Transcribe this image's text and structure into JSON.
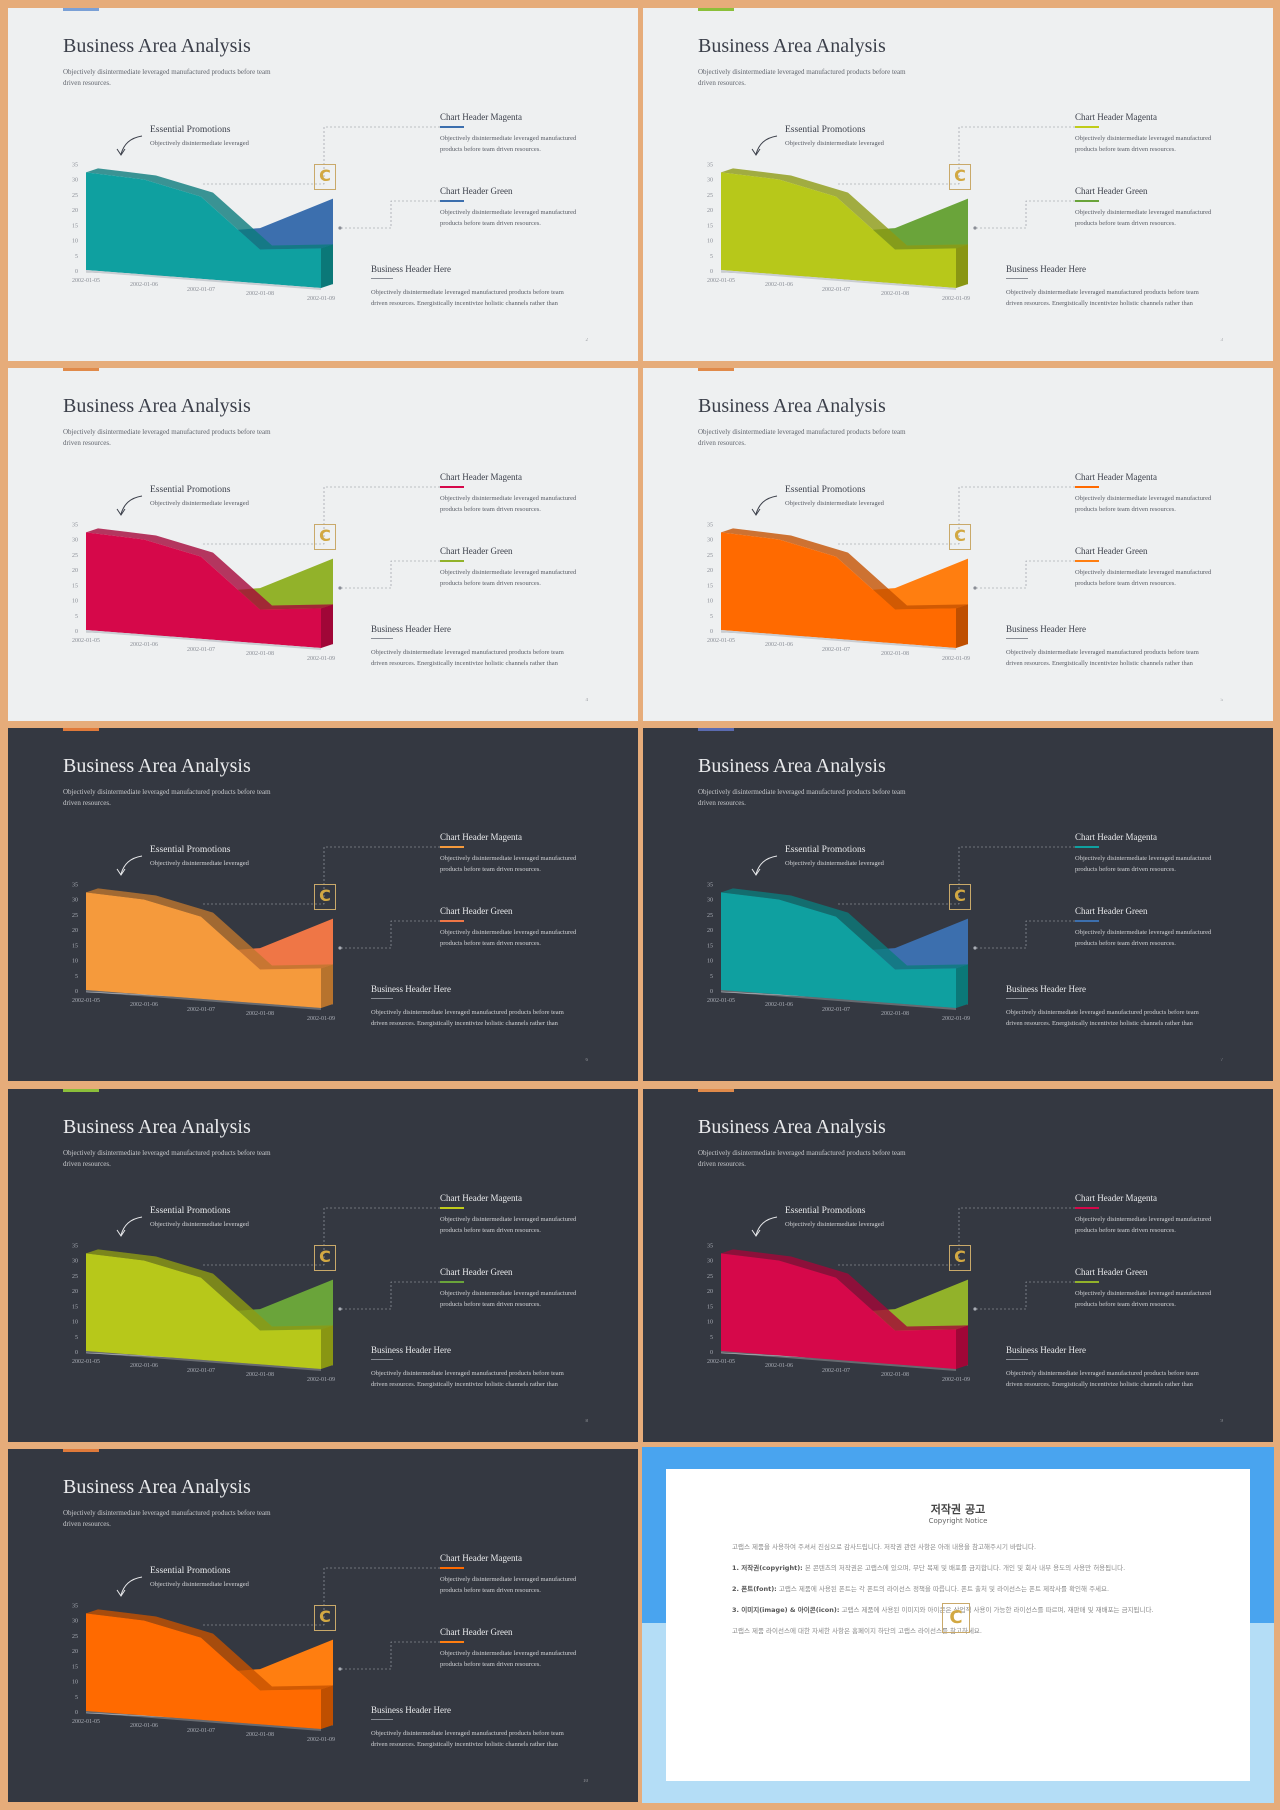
{
  "slide_text": {
    "title": "Business Area Analysis",
    "subtitle": "Objectively disintermediate leveraged manufactured products before team driven resources.",
    "essential_title": "Essential Promotions",
    "essential_text": "Objectively disintermediate leveraged",
    "chart_header_1": "Chart Header Magenta",
    "chart_header_1_text": "Objectively disintermediate leveraged manufactured products before team driven resources.",
    "chart_header_2": "Chart Header Green",
    "chart_header_2_text": "Objectively disintermediate leveraged manufactured products before team driven resources.",
    "business_header": "Business Header Here",
    "business_text": "Objectively disintermediate leveraged manufactured products before team driven resources. Energistically incentivize holistic channels rather than",
    "logo_letter": "C"
  },
  "chart_data": {
    "type": "area",
    "x": [
      "2002-01-05",
      "2002-01-06",
      "2002-01-07",
      "2002-01-08",
      "2002-01-09"
    ],
    "ylim": [
      0,
      35
    ],
    "yticks": [
      0,
      5,
      10,
      15,
      20,
      25,
      30,
      35
    ],
    "series": [
      {
        "values": [
          32,
          31,
          27,
          11,
          13
        ]
      },
      {
        "values": [
          0,
          0,
          0,
          18,
          28
        ]
      }
    ]
  },
  "slides": [
    {
      "theme": "light",
      "accent": "#7aa0d6",
      "front": "#0fa0a0",
      "back": "#3c6fae",
      "header1_color": "#3c6fae",
      "header2_color": "#3c6fae",
      "page": "2"
    },
    {
      "theme": "light",
      "accent": "#8bbf3a",
      "front": "#b7c81a",
      "back": "#6aa43a",
      "header1_color": "#c0cc1a",
      "header2_color": "#6aa43a",
      "page": "3"
    },
    {
      "theme": "light",
      "accent": "#e08a4a",
      "front": "#d6084a",
      "back": "#92b22a",
      "header1_color": "#d6084a",
      "header2_color": "#92b22a",
      "page": "4"
    },
    {
      "theme": "light",
      "accent": "#e08a4a",
      "front": "#ff6a00",
      "back": "#ff7e10",
      "header1_color": "#ff6a00",
      "header2_color": "#ff7e10",
      "page": "5"
    },
    {
      "theme": "dark",
      "accent": "#e07a3a",
      "front": "#f59a3c",
      "back": "#ef7646",
      "header1_color": "#f59a3c",
      "header2_color": "#ef7646",
      "page": "6"
    },
    {
      "theme": "dark",
      "accent": "#5a6ab0",
      "front": "#0fa0a0",
      "back": "#3c6fae",
      "header1_color": "#0fa0a0",
      "header2_color": "#3c6fae",
      "page": "7"
    },
    {
      "theme": "dark",
      "accent": "#8bbf3a",
      "front": "#b7c81a",
      "back": "#6aa43a",
      "header1_color": "#c0cc1a",
      "header2_color": "#6aa43a",
      "page": "8"
    },
    {
      "theme": "dark",
      "accent": "#e08a4a",
      "front": "#d6084a",
      "back": "#92b22a",
      "header1_color": "#d6084a",
      "header2_color": "#92b22a",
      "page": "9"
    },
    {
      "theme": "dark",
      "accent": "#e07a3a",
      "front": "#ff6a00",
      "back": "#ff7e10",
      "header1_color": "#ff6a00",
      "header2_color": "#ff7e10",
      "page": "10"
    }
  ],
  "copyright": {
    "title": "저작권 공고",
    "subtitle": "Copyright Notice",
    "intro": "고랩스 제품을 사용하여 주셔서 진심으로 감사드립니다. 저작권 관련 사항은 아래 내용을 참고해주시기 바랍니다.",
    "item1_label": "1. 저작권(copyright):",
    "item1_text": "본 콘텐츠의 저작권은 고랩스에 있으며, 무단 복제 및 배포를 금지합니다. 개인 및 회사 내부 용도의 사용만 허용됩니다.",
    "item2_label": "2. 폰트(font):",
    "item2_text": "고랩스 제품에 사용된 폰트는 각 폰트의 라이선스 정책을 따릅니다. 폰트 출처 및 라이선스는 폰트 제작사를 확인해 주세요.",
    "item3_label": "3. 이미지(image) & 아이콘(icon):",
    "item3_text": "고랩스 제품에 사용된 이미지와 아이콘은 상업적 사용이 가능한 라이선스를 따르며, 재판매 및 재배포는 금지됩니다.",
    "outro": "고랩스 제품 라이선스에 대한 자세한 사항은 홈페이지 하단의 고랩스 라이선스를 참고하세요.",
    "logo_letter": "C"
  }
}
